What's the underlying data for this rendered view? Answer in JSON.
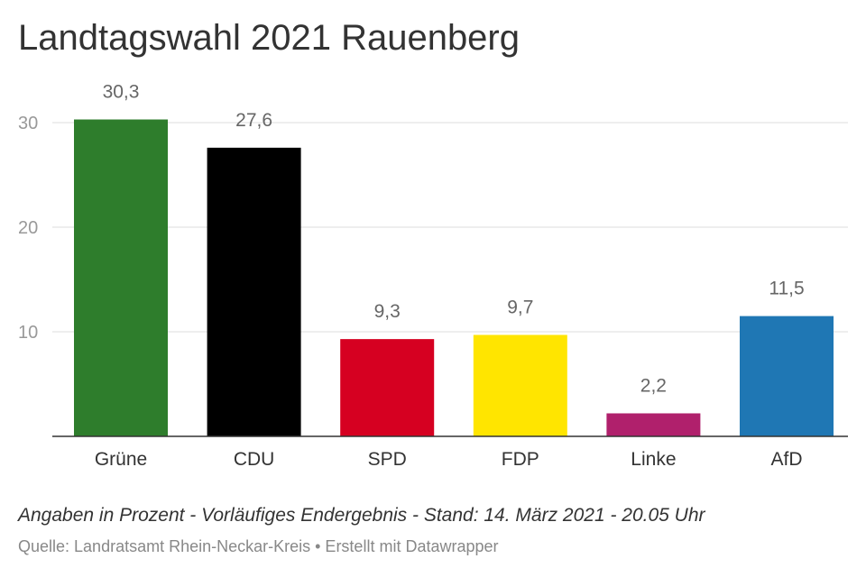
{
  "chart_data": {
    "type": "bar",
    "title": "Landtagswahl 2021 Rauenberg",
    "categories": [
      "Grüne",
      "CDU",
      "SPD",
      "FDP",
      "Linke",
      "AfD"
    ],
    "values": [
      30.3,
      27.6,
      9.3,
      9.7,
      2.2,
      11.5
    ],
    "value_labels": [
      "30,3",
      "27,6",
      "9,3",
      "9,7",
      "2,2",
      "11,5"
    ],
    "colors": [
      "#2e7d2c",
      "#000000",
      "#d60021",
      "#ffe500",
      "#b0206c",
      "#1f77b4"
    ],
    "yticks": [
      10,
      20,
      30
    ],
    "ylim": [
      0,
      30
    ],
    "grid": true,
    "legend": "none"
  },
  "footer": {
    "note": "Angaben in Prozent - Vorläufiges Endergebnis - Stand: 14. März 2021 - 20.05 Uhr",
    "source": "Quelle: Landratsamt Rhein-Neckar-Kreis • Erstellt mit Datawrapper"
  }
}
